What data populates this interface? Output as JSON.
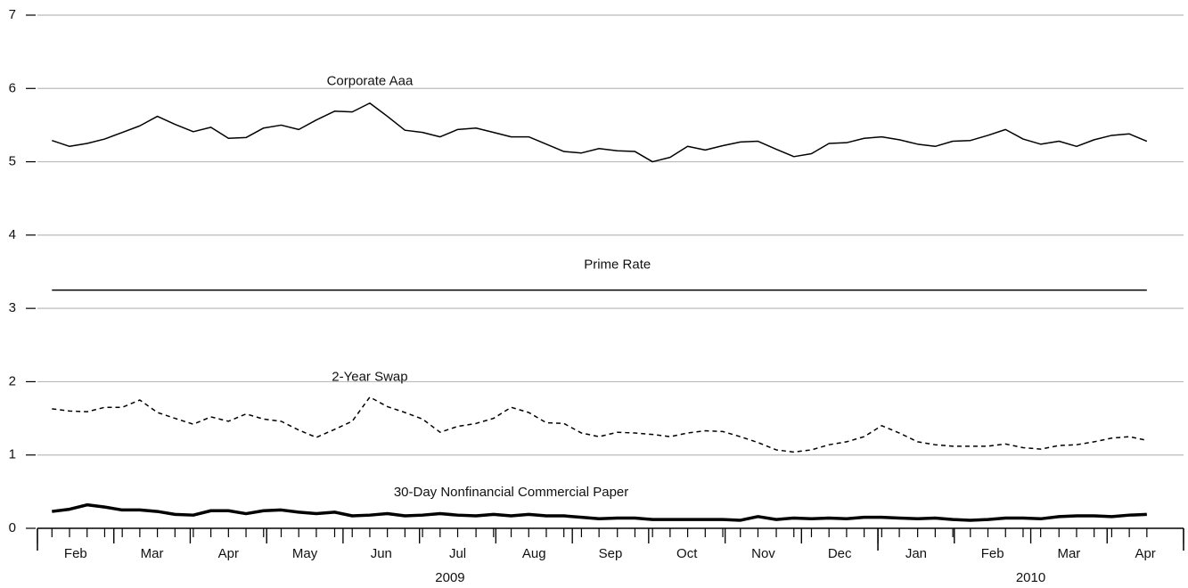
{
  "chart_data": {
    "type": "line",
    "x": [
      0.19,
      0.42,
      0.65,
      0.88,
      1.11,
      1.34,
      1.57,
      1.8,
      2.04,
      2.27,
      2.5,
      2.73,
      2.96,
      3.19,
      3.42,
      3.65,
      3.89,
      4.12,
      4.35,
      4.58,
      4.81,
      5.04,
      5.27,
      5.5,
      5.74,
      5.97,
      6.2,
      6.43,
      6.66,
      6.89,
      7.12,
      7.35,
      7.59,
      7.82,
      8.05,
      8.28,
      8.51,
      8.74,
      8.97,
      9.2,
      9.43,
      9.67,
      9.9,
      10.13,
      10.36,
      10.59,
      10.82,
      11.05,
      11.28,
      11.52,
      11.75,
      11.98,
      12.21,
      12.44,
      12.67,
      12.9,
      13.13,
      13.37,
      13.6,
      13.83,
      14.06,
      14.29,
      14.52
    ],
    "xlim": [
      0,
      15
    ],
    "xticks": [
      {
        "value": 0.5,
        "label": "Feb"
      },
      {
        "value": 1.5,
        "label": "Mar"
      },
      {
        "value": 2.5,
        "label": "Apr"
      },
      {
        "value": 3.5,
        "label": "May"
      },
      {
        "value": 4.5,
        "label": "Jun"
      },
      {
        "value": 5.5,
        "label": "Jul"
      },
      {
        "value": 6.5,
        "label": "Aug"
      },
      {
        "value": 7.5,
        "label": "Sep"
      },
      {
        "value": 8.5,
        "label": "Oct"
      },
      {
        "value": 9.5,
        "label": "Nov"
      },
      {
        "value": 10.5,
        "label": "Dec"
      },
      {
        "value": 11.5,
        "label": "Jan"
      },
      {
        "value": 12.5,
        "label": "Feb"
      },
      {
        "value": 13.5,
        "label": "Mar"
      },
      {
        "value": 14.5,
        "label": "Apr"
      }
    ],
    "year_ticks": [
      {
        "value": 5.4,
        "label": "2009"
      },
      {
        "value": 13,
        "label": "2010"
      }
    ],
    "year_breaks": [
      0,
      11,
      15
    ],
    "ylim": [
      0,
      7
    ],
    "yticks": [
      0,
      1,
      2,
      3,
      4,
      5,
      6,
      7
    ],
    "grid": true,
    "series": [
      {
        "name": "Corporate Aaa",
        "color": "#000000",
        "style": "solid",
        "width": 1.5,
        "values": [
          5.29,
          5.21,
          5.25,
          5.31,
          5.4,
          5.49,
          5.62,
          5.51,
          5.41,
          5.47,
          5.32,
          5.33,
          5.46,
          5.5,
          5.44,
          5.57,
          5.69,
          5.68,
          5.8,
          5.62,
          5.43,
          5.4,
          5.34,
          5.44,
          5.46,
          5.4,
          5.34,
          5.34,
          5.24,
          5.14,
          5.12,
          5.18,
          5.15,
          5.14,
          5.0,
          5.06,
          5.21,
          5.16,
          5.22,
          5.27,
          5.28,
          5.17,
          5.07,
          5.11,
          5.25,
          5.26,
          5.32,
          5.34,
          5.3,
          5.24,
          5.21,
          5.28,
          5.29,
          5.36,
          5.44,
          5.31,
          5.24,
          5.28,
          5.21,
          5.3,
          5.36,
          5.38,
          5.28
        ]
      },
      {
        "name": "Prime Rate",
        "color": "#000000",
        "style": "solid",
        "width": 1.5,
        "values": [
          3.25,
          3.25,
          3.25,
          3.25,
          3.25,
          3.25,
          3.25,
          3.25,
          3.25,
          3.25,
          3.25,
          3.25,
          3.25,
          3.25,
          3.25,
          3.25,
          3.25,
          3.25,
          3.25,
          3.25,
          3.25,
          3.25,
          3.25,
          3.25,
          3.25,
          3.25,
          3.25,
          3.25,
          3.25,
          3.25,
          3.25,
          3.25,
          3.25,
          3.25,
          3.25,
          3.25,
          3.25,
          3.25,
          3.25,
          3.25,
          3.25,
          3.25,
          3.25,
          3.25,
          3.25,
          3.25,
          3.25,
          3.25,
          3.25,
          3.25,
          3.25,
          3.25,
          3.25,
          3.25,
          3.25,
          3.25,
          3.25,
          3.25,
          3.25,
          3.25,
          3.25,
          3.25,
          3.25
        ]
      },
      {
        "name": "2-Year Swap",
        "color": "#000000",
        "style": "dashed",
        "width": 1.5,
        "values": [
          1.63,
          1.6,
          1.59,
          1.65,
          1.65,
          1.75,
          1.58,
          1.5,
          1.42,
          1.52,
          1.46,
          1.56,
          1.49,
          1.46,
          1.34,
          1.24,
          1.35,
          1.46,
          1.79,
          1.66,
          1.58,
          1.49,
          1.31,
          1.39,
          1.43,
          1.5,
          1.65,
          1.58,
          1.44,
          1.43,
          1.3,
          1.25,
          1.31,
          1.3,
          1.28,
          1.25,
          1.3,
          1.33,
          1.32,
          1.25,
          1.17,
          1.07,
          1.04,
          1.07,
          1.14,
          1.18,
          1.25,
          1.4,
          1.3,
          1.18,
          1.14,
          1.12,
          1.12,
          1.12,
          1.15,
          1.1,
          1.08,
          1.13,
          1.14,
          1.18,
          1.23,
          1.25,
          1.2
        ]
      },
      {
        "name": "30-Day Nonfinancial Commercial Paper",
        "color": "#000000",
        "style": "solid",
        "width": 3.5,
        "values": [
          0.23,
          0.26,
          0.32,
          0.29,
          0.25,
          0.25,
          0.23,
          0.19,
          0.18,
          0.24,
          0.24,
          0.2,
          0.24,
          0.25,
          0.22,
          0.2,
          0.22,
          0.17,
          0.18,
          0.2,
          0.17,
          0.18,
          0.2,
          0.18,
          0.17,
          0.19,
          0.17,
          0.19,
          0.17,
          0.17,
          0.15,
          0.13,
          0.14,
          0.14,
          0.12,
          0.12,
          0.12,
          0.12,
          0.12,
          0.11,
          0.16,
          0.12,
          0.14,
          0.13,
          0.14,
          0.13,
          0.15,
          0.15,
          0.14,
          0.13,
          0.14,
          0.12,
          0.11,
          0.12,
          0.14,
          0.14,
          0.13,
          0.16,
          0.17,
          0.17,
          0.16,
          0.18,
          0.19
        ]
      }
    ]
  }
}
